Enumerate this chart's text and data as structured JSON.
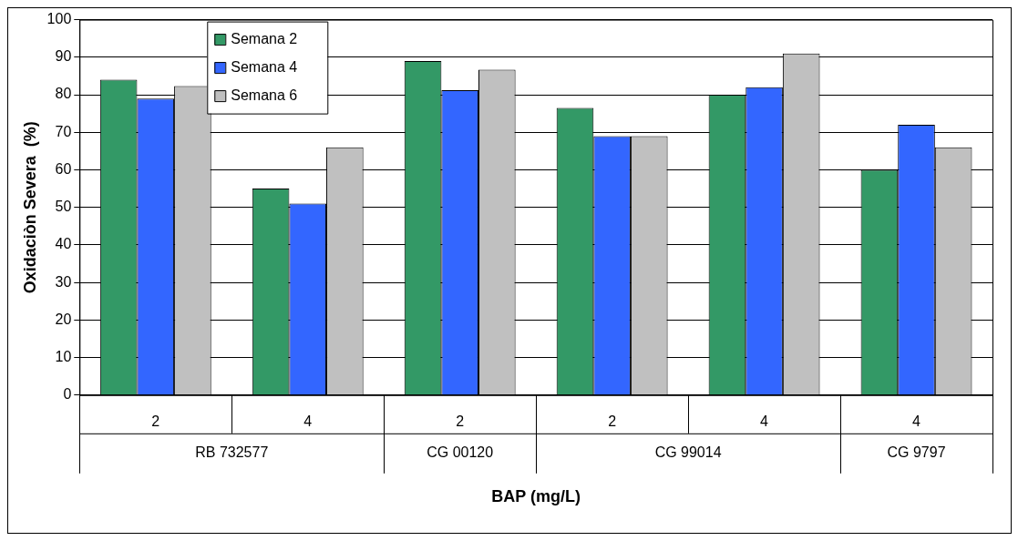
{
  "chart_data": {
    "type": "bar",
    "xlabel": "BAP (mg/L)",
    "ylabel": "Oxidaciòn Severa  (%)",
    "categories": [
      "2",
      "4",
      "2",
      "2",
      "4",
      "4"
    ],
    "annotations": [
      "RB 732577",
      "CG 00120",
      "CG 99014",
      "CG 9797"
    ],
    "series": [
      {
        "name": "Semana 2",
        "color": "#339966",
        "values": [
          84,
          55,
          89,
          76.5,
          80,
          60
        ]
      },
      {
        "name": "Semana 4",
        "color": "#3366ff",
        "values": [
          79,
          51,
          81.2,
          69,
          82,
          72
        ]
      },
      {
        "name": "Semana 6",
        "color": "#c0c0c0",
        "values": [
          82.3,
          66,
          86.7,
          69,
          91,
          66
        ]
      }
    ],
    "ylim": [
      0,
      100
    ],
    "yticks": [
      0,
      10,
      20,
      30,
      40,
      50,
      60,
      70,
      80,
      90,
      100
    ],
    "grid": "y",
    "legend": "top left"
  }
}
